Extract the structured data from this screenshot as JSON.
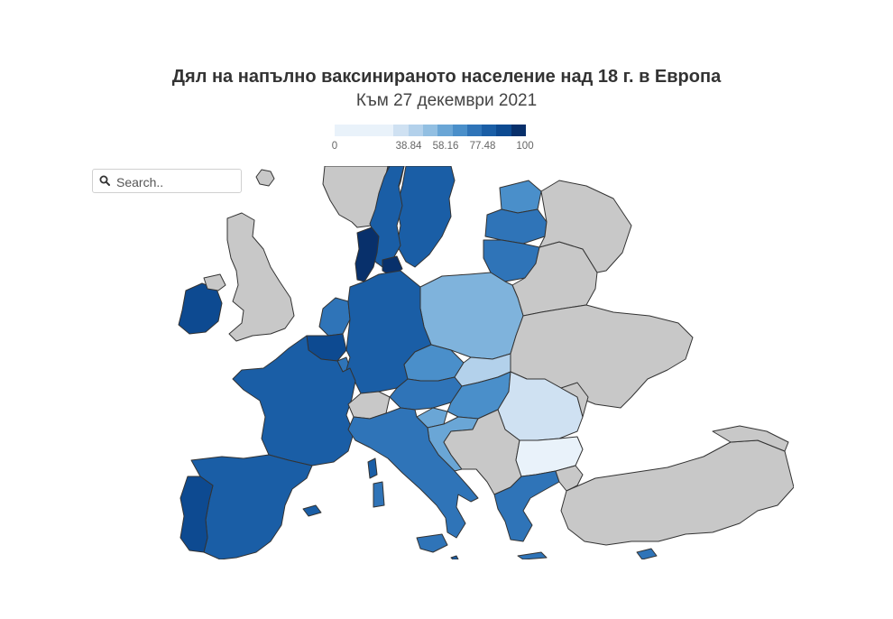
{
  "title": "Дял на напълно ваксинираното население над 18 г. в Европа",
  "subtitle": "Към 27 декември 2021",
  "legend": {
    "ticks": [
      "0",
      "38.84",
      "58.16",
      "77.48",
      "100"
    ],
    "colors": [
      "#e9f2fa",
      "#e9f2fa",
      "#e9f2fa",
      "#e9f2fa",
      "#cfe1f2",
      "#b3d1eb",
      "#92bfe2",
      "#6aa6d6",
      "#4a8fca",
      "#2f74b8",
      "#1a5ea6",
      "#0d4a91",
      "#08306b"
    ]
  },
  "search": {
    "placeholder": "Search.."
  },
  "colors": {
    "no_data": "#c8c8c8",
    "border": "#333333"
  },
  "countries": [
    {
      "name": "Ireland",
      "color": "#0d4a91"
    },
    {
      "name": "United Kingdom",
      "color": "#c8c8c8"
    },
    {
      "name": "Iceland",
      "color": "#c8c8c8"
    },
    {
      "name": "Norway",
      "color": "#c8c8c8"
    },
    {
      "name": "Sweden",
      "color": "#1a5ea6"
    },
    {
      "name": "Finland",
      "color": "#1a5ea6"
    },
    {
      "name": "Denmark",
      "color": "#08306b"
    },
    {
      "name": "Estonia",
      "color": "#4a8fca"
    },
    {
      "name": "Latvia",
      "color": "#2f74b8"
    },
    {
      "name": "Lithuania",
      "color": "#2f74b8"
    },
    {
      "name": "Netherlands",
      "color": "#2f74b8"
    },
    {
      "name": "Belgium",
      "color": "#0d4a91"
    },
    {
      "name": "Luxembourg",
      "color": "#2f74b8"
    },
    {
      "name": "Germany",
      "color": "#1a5ea6"
    },
    {
      "name": "Poland",
      "color": "#7fb3dc"
    },
    {
      "name": "France",
      "color": "#1a5ea6"
    },
    {
      "name": "Switzerland",
      "color": "#c8c8c8"
    },
    {
      "name": "Austria",
      "color": "#2f74b8"
    },
    {
      "name": "Czechia",
      "color": "#4a8fca"
    },
    {
      "name": "Slovakia",
      "color": "#b3d1eb"
    },
    {
      "name": "Hungary",
      "color": "#4a8fca"
    },
    {
      "name": "Slovenia",
      "color": "#6aa6d6"
    },
    {
      "name": "Croatia",
      "color": "#6aa6d6"
    },
    {
      "name": "Italy",
      "color": "#2f74b8"
    },
    {
      "name": "Spain",
      "color": "#1a5ea6"
    },
    {
      "name": "Portugal",
      "color": "#0d4a91"
    },
    {
      "name": "Romania",
      "color": "#cfe1f2"
    },
    {
      "name": "Bulgaria",
      "color": "#e9f2fa"
    },
    {
      "name": "Greece",
      "color": "#2f74b8"
    },
    {
      "name": "Cyprus",
      "color": "#2f74b8"
    },
    {
      "name": "Malta",
      "color": "#1a5ea6"
    },
    {
      "name": "Belarus",
      "color": "#c8c8c8"
    },
    {
      "name": "Ukraine",
      "color": "#c8c8c8"
    },
    {
      "name": "Moldova",
      "color": "#c8c8c8"
    },
    {
      "name": "Turkey",
      "color": "#c8c8c8"
    },
    {
      "name": "Western Balkans",
      "color": "#c8c8c8"
    },
    {
      "name": "Georgia",
      "color": "#c8c8c8"
    }
  ]
}
